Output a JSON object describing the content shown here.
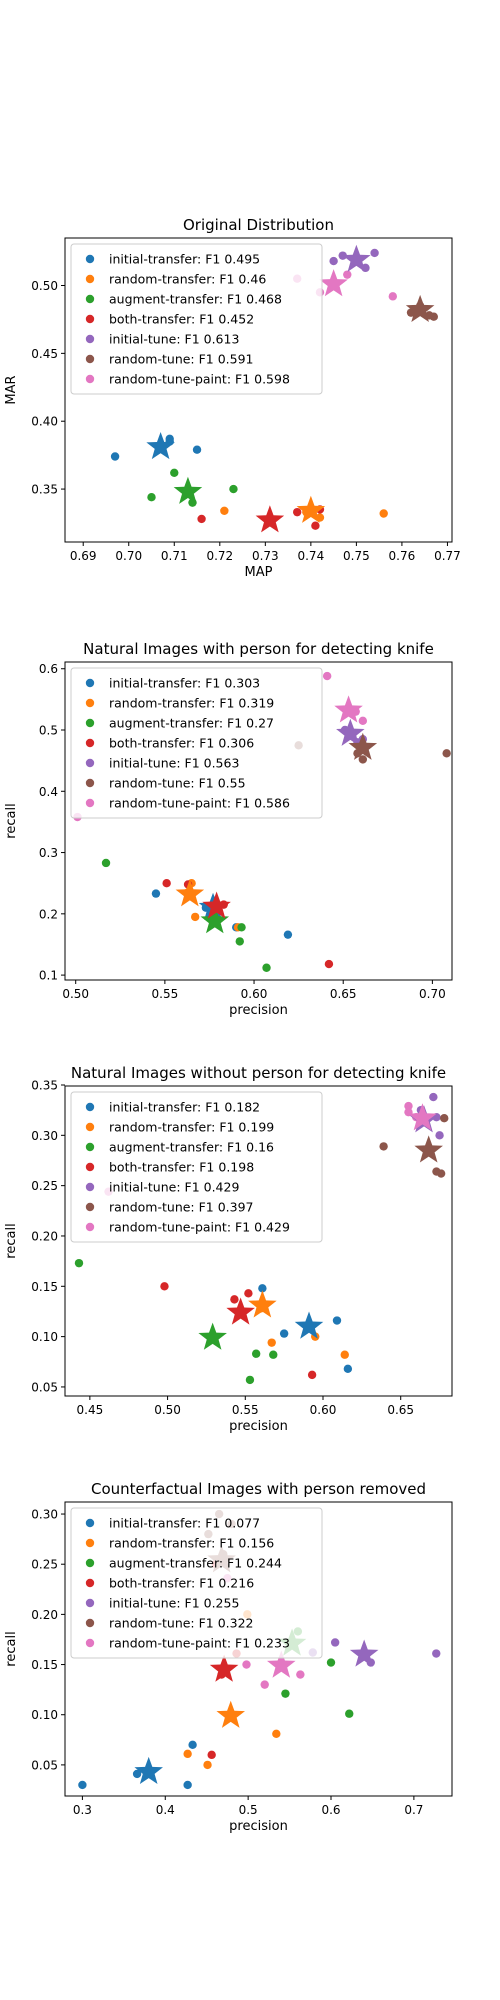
{
  "colors": {
    "initial-transfer": "#1f77b4",
    "random-transfer": "#ff7f0e",
    "augment-transfer": "#2ca02c",
    "both-transfer": "#d62728",
    "initial-tune": "#9467bd",
    "random-tune": "#8c564b",
    "random-tune-paint": "#e377c2"
  },
  "chart_data": [
    {
      "type": "scatter",
      "title": "Original Distribution",
      "xlabel": "MAP",
      "ylabel": "MAR",
      "xlim": [
        0.686,
        0.771
      ],
      "ylim": [
        0.311,
        0.535
      ],
      "xticks": [
        0.69,
        0.7,
        0.71,
        0.72,
        0.73,
        0.74,
        0.75,
        0.76,
        0.77
      ],
      "xtick_labels": [
        "0.69",
        "0.70",
        "0.71",
        "0.72",
        "0.73",
        "0.74",
        "0.75",
        "0.76",
        "0.77"
      ],
      "yticks": [
        0.35,
        0.4,
        0.45,
        0.5
      ],
      "ytick_labels": [
        "0.35",
        "0.40",
        "0.45",
        "0.50"
      ],
      "legend_position": "upper-left",
      "series": [
        {
          "key": "initial-transfer",
          "legend": "initial-transfer: F1 0.495",
          "points": [
            [
              0.697,
              0.374
            ],
            [
              0.709,
              0.385
            ],
            [
              0.709,
              0.387
            ],
            [
              0.715,
              0.379
            ]
          ],
          "mean": [
            0.707,
            0.381
          ]
        },
        {
          "key": "random-transfer",
          "legend": "random-transfer: F1 0.46",
          "points": [
            [
              0.721,
              0.334
            ],
            [
              0.739,
              0.333
            ],
            [
              0.742,
              0.329
            ],
            [
              0.756,
              0.332
            ]
          ],
          "mean": [
            0.74,
            0.334
          ]
        },
        {
          "key": "augment-transfer",
          "legend": "augment-transfer: F1 0.468",
          "points": [
            [
              0.705,
              0.344
            ],
            [
              0.71,
              0.362
            ],
            [
              0.714,
              0.34
            ],
            [
              0.723,
              0.35
            ]
          ],
          "mean": [
            0.713,
            0.348
          ]
        },
        {
          "key": "both-transfer",
          "legend": "both-transfer: F1 0.452",
          "points": [
            [
              0.716,
              0.328
            ],
            [
              0.737,
              0.333
            ],
            [
              0.741,
              0.323
            ],
            [
              0.742,
              0.335
            ]
          ],
          "mean": [
            0.731,
            0.327
          ]
        },
        {
          "key": "initial-tune",
          "legend": "initial-tune: F1 0.613",
          "points": [
            [
              0.745,
              0.518
            ],
            [
              0.747,
              0.522
            ],
            [
              0.752,
              0.513
            ],
            [
              0.754,
              0.524
            ]
          ],
          "mean": [
            0.75,
            0.519
          ]
        },
        {
          "key": "random-tune",
          "legend": "random-tune: F1 0.591",
          "points": [
            [
              0.762,
              0.48
            ],
            [
              0.764,
              0.485
            ],
            [
              0.766,
              0.478
            ],
            [
              0.767,
              0.477
            ]
          ],
          "mean": [
            0.764,
            0.482
          ]
        },
        {
          "key": "random-tune-paint",
          "legend": "random-tune-paint: F1 0.598",
          "points": [
            [
              0.737,
              0.505
            ],
            [
              0.742,
              0.495
            ],
            [
              0.748,
              0.508
            ],
            [
              0.758,
              0.492
            ]
          ],
          "mean": [
            0.745,
            0.501
          ]
        }
      ]
    },
    {
      "type": "scatter",
      "title": "Natural Images with person for detecting knife",
      "xlabel": "precision",
      "ylabel": "recall",
      "xlim": [
        0.494,
        0.711
      ],
      "ylim": [
        0.092,
        0.611
      ],
      "xticks": [
        0.5,
        0.55,
        0.6,
        0.65,
        0.7
      ],
      "xtick_labels": [
        "0.50",
        "0.55",
        "0.60",
        "0.65",
        "0.70"
      ],
      "yticks": [
        0.1,
        0.2,
        0.3,
        0.4,
        0.5,
        0.6
      ],
      "ytick_labels": [
        "0.1",
        "0.2",
        "0.3",
        "0.4",
        "0.5",
        "0.6"
      ],
      "legend_position": "upper-left",
      "series": [
        {
          "key": "initial-transfer",
          "legend": "initial-transfer: F1 0.303",
          "points": [
            [
              0.573,
              0.21
            ],
            [
              0.59,
              0.178
            ],
            [
              0.619,
              0.166
            ],
            [
              0.545,
              0.233
            ]
          ],
          "mean": [
            0.577,
            0.21
          ]
        },
        {
          "key": "random-transfer",
          "legend": "random-transfer: F1 0.319",
          "points": [
            [
              0.563,
              0.235
            ],
            [
              0.567,
              0.195
            ],
            [
              0.565,
              0.25
            ],
            [
              0.591,
              0.178
            ]
          ],
          "mean": [
            0.564,
            0.232
          ]
        },
        {
          "key": "augment-transfer",
          "legend": "augment-transfer: F1 0.27",
          "points": [
            [
              0.517,
              0.283
            ],
            [
              0.592,
              0.155
            ],
            [
              0.593,
              0.178
            ],
            [
              0.607,
              0.112
            ]
          ],
          "mean": [
            0.578,
            0.188
          ]
        },
        {
          "key": "both-transfer",
          "legend": "both-transfer: F1 0.306",
          "points": [
            [
              0.551,
              0.25
            ],
            [
              0.563,
              0.248
            ],
            [
              0.583,
              0.215
            ],
            [
              0.642,
              0.118
            ]
          ],
          "mean": [
            0.579,
            0.212
          ]
        },
        {
          "key": "initial-tune",
          "legend": "initial-tune: F1 0.563",
          "points": [
            [
              0.651,
              0.5
            ],
            [
              0.655,
              0.49
            ],
            [
              0.658,
              0.48
            ],
            [
              0.661,
              0.485
            ]
          ],
          "mean": [
            0.654,
            0.494
          ]
        },
        {
          "key": "random-tune",
          "legend": "random-tune: F1 0.55",
          "points": [
            [
              0.708,
              0.462
            ],
            [
              0.658,
              0.462
            ],
            [
              0.661,
              0.452
            ],
            [
              0.625,
              0.475
            ]
          ],
          "mean": [
            0.661,
            0.471
          ]
        },
        {
          "key": "random-tune-paint",
          "legend": "random-tune-paint: F1 0.586",
          "points": [
            [
              0.501,
              0.358
            ],
            [
              0.641,
              0.588
            ],
            [
              0.661,
              0.515
            ],
            [
              0.657,
              0.53
            ]
          ],
          "mean": [
            0.653,
            0.532
          ]
        }
      ]
    },
    {
      "type": "scatter",
      "title": "Natural Images without person for detecting knife",
      "xlabel": "precision",
      "ylabel": "recall",
      "xlim": [
        0.434,
        0.683
      ],
      "ylim": [
        0.041,
        0.349
      ],
      "xticks": [
        0.45,
        0.5,
        0.55,
        0.6,
        0.65
      ],
      "xtick_labels": [
        "0.45",
        "0.50",
        "0.55",
        "0.60",
        "0.65"
      ],
      "yticks": [
        0.05,
        0.1,
        0.15,
        0.2,
        0.25,
        0.3,
        0.35
      ],
      "ytick_labels": [
        "0.05",
        "0.10",
        "0.15",
        "0.20",
        "0.25",
        "0.30",
        "0.35"
      ],
      "legend_position": "upper-left",
      "series": [
        {
          "key": "initial-transfer",
          "legend": "initial-transfer: F1 0.182",
          "points": [
            [
              0.561,
              0.148
            ],
            [
              0.575,
              0.103
            ],
            [
              0.609,
              0.116
            ],
            [
              0.616,
              0.068
            ]
          ],
          "mean": [
            0.591,
            0.11
          ]
        },
        {
          "key": "random-transfer",
          "legend": "random-transfer: F1 0.199",
          "points": [
            [
              0.567,
              0.094
            ],
            [
              0.595,
              0.1
            ],
            [
              0.614,
              0.082
            ],
            [
              0.56,
              0.128
            ]
          ],
          "mean": [
            0.561,
            0.131
          ]
        },
        {
          "key": "augment-transfer",
          "legend": "augment-transfer: F1 0.16",
          "points": [
            [
              0.443,
              0.173
            ],
            [
              0.553,
              0.057
            ],
            [
              0.557,
              0.083
            ],
            [
              0.568,
              0.082
            ]
          ],
          "mean": [
            0.529,
            0.099
          ]
        },
        {
          "key": "both-transfer",
          "legend": "both-transfer: F1 0.198",
          "points": [
            [
              0.498,
              0.15
            ],
            [
              0.543,
              0.137
            ],
            [
              0.552,
              0.143
            ],
            [
              0.593,
              0.062
            ]
          ],
          "mean": [
            0.547,
            0.124
          ]
        },
        {
          "key": "initial-tune",
          "legend": "initial-tune: F1 0.429",
          "points": [
            [
              0.663,
              0.325
            ],
            [
              0.671,
              0.338
            ],
            [
              0.675,
              0.3
            ],
            [
              0.673,
              0.318
            ]
          ],
          "mean": [
            0.665,
            0.315
          ]
        },
        {
          "key": "random-tune",
          "legend": "random-tune: F1 0.397",
          "points": [
            [
              0.639,
              0.289
            ],
            [
              0.673,
              0.264
            ],
            [
              0.676,
              0.262
            ],
            [
              0.678,
              0.317
            ]
          ],
          "mean": [
            0.668,
            0.285
          ]
        },
        {
          "key": "random-tune-paint",
          "legend": "random-tune-paint: F1 0.429",
          "points": [
            [
              0.655,
              0.329
            ],
            [
              0.655,
              0.323
            ],
            [
              0.66,
              0.318
            ],
            [
              0.462,
              0.244
            ]
          ],
          "mean": [
            0.664,
            0.317
          ]
        }
      ]
    },
    {
      "type": "scatter",
      "title": "Counterfactual Images with person removed",
      "xlabel": "precision",
      "ylabel": "recall",
      "xlim": [
        0.279,
        0.746
      ],
      "ylim": [
        0.019,
        0.312
      ],
      "xticks": [
        0.3,
        0.4,
        0.5,
        0.6,
        0.7
      ],
      "xtick_labels": [
        "0.3",
        "0.4",
        "0.5",
        "0.6",
        "0.7"
      ],
      "yticks": [
        0.05,
        0.1,
        0.15,
        0.2,
        0.25,
        0.3
      ],
      "ytick_labels": [
        "0.05",
        "0.10",
        "0.15",
        "0.20",
        "0.25",
        "0.30"
      ],
      "legend_position": "upper-left",
      "series": [
        {
          "key": "initial-transfer",
          "legend": "initial-transfer: F1 0.077",
          "points": [
            [
              0.3,
              0.03
            ],
            [
              0.366,
              0.041
            ],
            [
              0.427,
              0.03
            ],
            [
              0.433,
              0.07
            ]
          ],
          "mean": [
            0.38,
            0.043
          ]
        },
        {
          "key": "random-transfer",
          "legend": "random-transfer: F1 0.156",
          "points": [
            [
              0.427,
              0.061
            ],
            [
              0.451,
              0.05
            ],
            [
              0.534,
              0.081
            ],
            [
              0.499,
              0.2
            ]
          ],
          "mean": [
            0.479,
            0.099
          ]
        },
        {
          "key": "augment-transfer",
          "legend": "augment-transfer: F1 0.244",
          "points": [
            [
              0.545,
              0.121
            ],
            [
              0.6,
              0.152
            ],
            [
              0.622,
              0.101
            ],
            [
              0.56,
              0.183
            ]
          ],
          "mean": [
            0.553,
            0.171
          ]
        },
        {
          "key": "both-transfer",
          "legend": "both-transfer: F1 0.216",
          "points": [
            [
              0.456,
              0.06
            ],
            [
              0.468,
              0.14
            ],
            [
              0.486,
              0.161
            ],
            [
              0.461,
              0.25
            ]
          ],
          "mean": [
            0.471,
            0.145
          ]
        },
        {
          "key": "initial-tune",
          "legend": "initial-tune: F1 0.255",
          "points": [
            [
              0.605,
              0.172
            ],
            [
              0.648,
              0.152
            ],
            [
              0.727,
              0.161
            ],
            [
              0.578,
              0.162
            ]
          ],
          "mean": [
            0.64,
            0.16
          ]
        },
        {
          "key": "random-tune",
          "legend": "random-tune: F1 0.322",
          "points": [
            [
              0.452,
              0.28
            ],
            [
              0.465,
              0.3
            ],
            [
              0.48,
              0.29
            ],
            [
              0.47,
              0.26
            ]
          ],
          "mean": [
            0.468,
            0.254
          ]
        },
        {
          "key": "random-tune-paint",
          "legend": "random-tune-paint: F1 0.233",
          "points": [
            [
              0.52,
              0.13
            ],
            [
              0.563,
              0.14
            ],
            [
              0.498,
              0.15
            ],
            [
              0.475,
              0.236
            ]
          ],
          "mean": [
            0.54,
            0.149
          ]
        }
      ]
    }
  ]
}
